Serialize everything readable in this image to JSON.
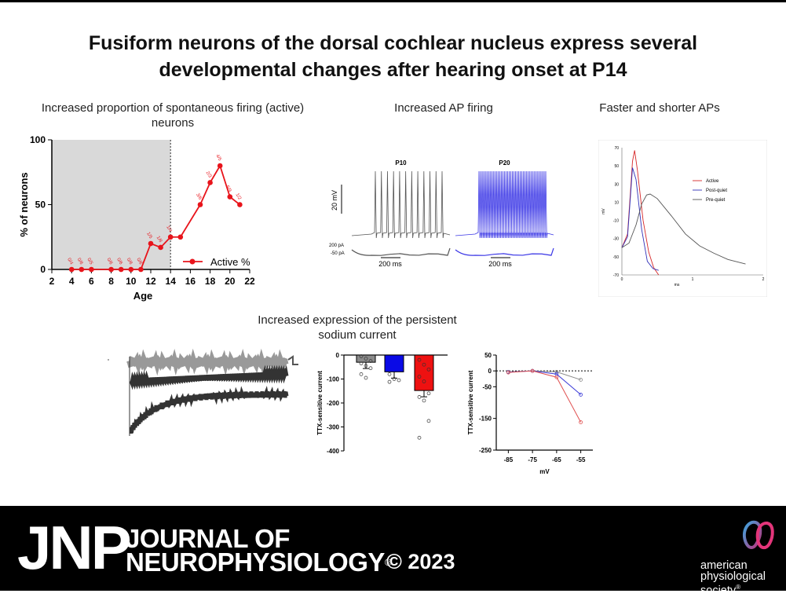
{
  "title_line1": "Fusiform neurons of the dorsal cochlear nucleus express several",
  "title_line2": "developmental changes after hearing onset at P14",
  "sections": {
    "proportion_line1": "Increased proportion of spontaneous firing (active)",
    "proportion_line2": "neurons",
    "ap_firing": "Increased AP firing",
    "faster_aps": "Faster and shorter APs",
    "persistent_line1": "Increased expression of the persistent",
    "persistent_line2": "sodium current"
  },
  "chart_data": [
    {
      "type": "line",
      "xlabel": "Age",
      "ylabel": "% of neurons",
      "xlim": [
        2,
        22
      ],
      "ylim": [
        0,
        100
      ],
      "xticks": [
        "2",
        "4",
        "6",
        "8",
        "10",
        "12",
        "14",
        "16",
        "18",
        "20",
        "22"
      ],
      "yticks": [
        "0",
        "50",
        "100"
      ],
      "shaded_region": [
        2,
        14
      ],
      "series": [
        {
          "name": "Active %",
          "color": "#e8141b",
          "x": [
            4,
            5,
            6,
            8,
            9,
            10,
            11,
            12,
            13,
            14,
            15,
            17,
            18,
            19,
            20,
            21
          ],
          "y": [
            0,
            0,
            0,
            0,
            0,
            0,
            0,
            20,
            17,
            25,
            25,
            50,
            67,
            80,
            56,
            50
          ],
          "labels": [
            "0/4",
            "0/6",
            "0/5",
            "0/6",
            "0/6",
            "0/6",
            "0/6",
            "1/5",
            "1/6",
            "1/4",
            "",
            "3/6",
            "2/3",
            "4/5",
            "5/9",
            "1/2"
          ]
        }
      ]
    },
    {
      "type": "line",
      "panels": [
        "P10",
        "P20"
      ],
      "scale_bar_voltage": "20 mV",
      "scale_bar_time": "200 ms",
      "current_labels": [
        "200 pA",
        "-50 pA"
      ],
      "spike_counts": [
        12,
        43
      ],
      "colors": [
        "#555555",
        "#3b37e6"
      ]
    },
    {
      "type": "line",
      "xlabel": "ms",
      "ylabel": "mV",
      "xlim": [
        0,
        2
      ],
      "ylim": [
        -70,
        70
      ],
      "xticks": [
        "0",
        "1",
        "2"
      ],
      "yticks": [
        "70",
        "50",
        "30",
        "10",
        "-10",
        "-30",
        "-50",
        "-70"
      ],
      "series": [
        {
          "name": "Active",
          "color": "#d62728",
          "x": [
            0,
            0.08,
            0.12,
            0.15,
            0.18,
            0.22,
            0.3,
            0.38,
            0.45,
            0.52
          ],
          "y": [
            -40,
            -25,
            20,
            55,
            67,
            45,
            -10,
            -45,
            -62,
            -70
          ]
        },
        {
          "name": "Post-quiet",
          "color": "#3030b8",
          "x": [
            0,
            0.08,
            0.12,
            0.15,
            0.2,
            0.28,
            0.36,
            0.44,
            0.52
          ],
          "y": [
            -40,
            -28,
            15,
            48,
            35,
            -20,
            -55,
            -63,
            -65
          ]
        },
        {
          "name": "Pre-quiet",
          "color": "#555555",
          "x": [
            0,
            0.1,
            0.2,
            0.28,
            0.35,
            0.4,
            0.5,
            0.7,
            0.9,
            1.1,
            1.3,
            1.5,
            1.75
          ],
          "y": [
            -40,
            -35,
            -15,
            8,
            18,
            19,
            14,
            -5,
            -25,
            -38,
            -46,
            -53,
            -58
          ]
        }
      ]
    },
    {
      "type": "bar",
      "ylabel": "TTX-sensitive current",
      "ylim": [
        -400,
        0
      ],
      "yticks": [
        "0",
        "-100",
        "-200",
        "-300",
        "-400"
      ],
      "values": [
        -30,
        -70,
        -148
      ],
      "colors": [
        "#8a8a8a",
        "#0a0ae6",
        "#ee1111"
      ],
      "points": [
        [
          -5,
          -15,
          -25,
          -35,
          -45,
          -55,
          -80,
          -95
        ],
        [
          -80,
          -100,
          -105,
          -112
        ],
        [
          -20,
          -40,
          -60,
          -90,
          -110,
          -160,
          -175,
          -190,
          -275,
          -345
        ]
      ]
    },
    {
      "type": "line",
      "xlabel": "mV",
      "ylabel": "TTX-sensitive current",
      "xlim": [
        -90,
        -50
      ],
      "ylim": [
        -250,
        50
      ],
      "xticks": [
        "-85",
        "-75",
        "-65",
        "-55"
      ],
      "yticks": [
        "50",
        "0",
        "-50",
        "-150",
        "-250"
      ],
      "series": [
        {
          "name": "",
          "color": "#8a8a8a",
          "x": [
            -85,
            -75,
            -65,
            -55
          ],
          "y": [
            -3,
            0,
            -3,
            -28
          ]
        },
        {
          "name": "",
          "color": "#3a3ad8",
          "x": [
            -85,
            -75,
            -65,
            -55
          ],
          "y": [
            -4,
            0,
            -10,
            -75
          ]
        },
        {
          "name": "",
          "color": "#e05050",
          "x": [
            -85,
            -75,
            -65,
            -55
          ],
          "y": [
            -5,
            0,
            -20,
            -162
          ]
        }
      ]
    }
  ],
  "footer": {
    "journal_abbr": "JNP",
    "journal_line1": "JOURNAL OF",
    "journal_line2": "NEUROPHYSIOLOGY",
    "registered": "®",
    "copyright": "© 2023",
    "society_line1": "american",
    "society_line2": "physiological",
    "society_line3": "society",
    "society_reg": "®"
  }
}
